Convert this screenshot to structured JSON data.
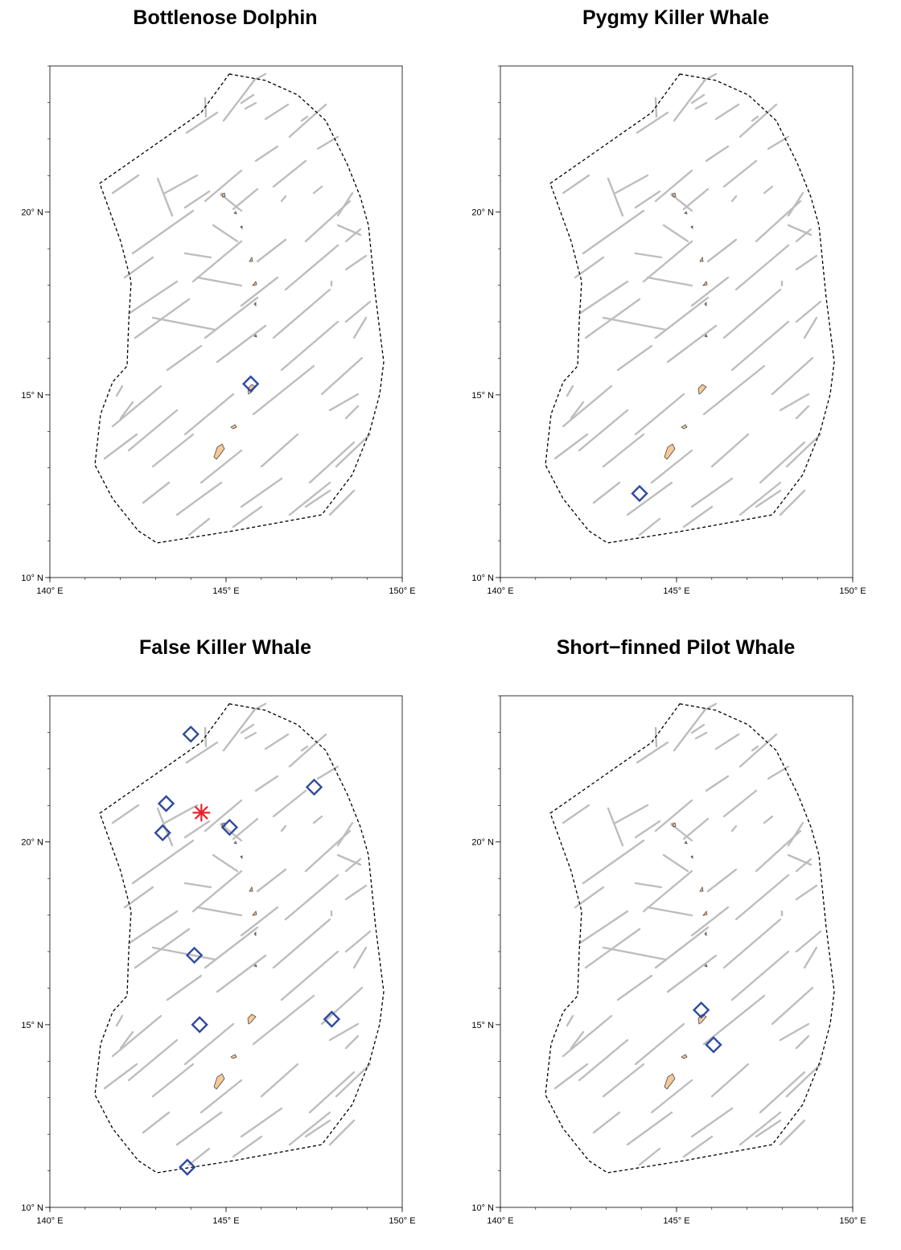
{
  "axes": {
    "lon_range": [
      140,
      150
    ],
    "lat_range": [
      10,
      24
    ],
    "lon_ticks": [
      {
        "value": 140,
        "label": "140° E"
      },
      {
        "value": 145,
        "label": "145° E"
      },
      {
        "value": 150,
        "label": "150° E"
      }
    ],
    "lat_ticks": [
      {
        "value": 10,
        "label": "10° N"
      },
      {
        "value": 15,
        "label": "15° N"
      },
      {
        "value": 20,
        "label": "20° N"
      }
    ]
  },
  "colors": {
    "transect": "#bdbdbd",
    "boundary": "#000000",
    "sighting": "#2e4a9e",
    "acoustic": "#e8202a",
    "island": "#f5c99a"
  },
  "panels": [
    {
      "title": "Bottlenose Dolphin",
      "sightings": [
        [
          145.7,
          15.3
        ]
      ],
      "acoustic": []
    },
    {
      "title": "Pygmy Killer Whale",
      "sightings": [
        [
          143.95,
          12.3
        ]
      ],
      "acoustic": []
    },
    {
      "title": "False Killer Whale",
      "sightings": [
        [
          144.0,
          22.95
        ],
        [
          143.3,
          21.05
        ],
        [
          143.2,
          20.25
        ],
        [
          145.1,
          20.4
        ],
        [
          147.5,
          21.5
        ],
        [
          144.1,
          16.9
        ],
        [
          144.25,
          15.0
        ],
        [
          148.0,
          15.15
        ],
        [
          143.9,
          11.1
        ]
      ],
      "acoustic": [
        [
          144.3,
          20.8
        ]
      ]
    },
    {
      "title": "Short−finned Pilot Whale",
      "sightings": [
        [
          145.7,
          15.4
        ],
        [
          146.05,
          14.45
        ]
      ],
      "acoustic": []
    }
  ]
}
